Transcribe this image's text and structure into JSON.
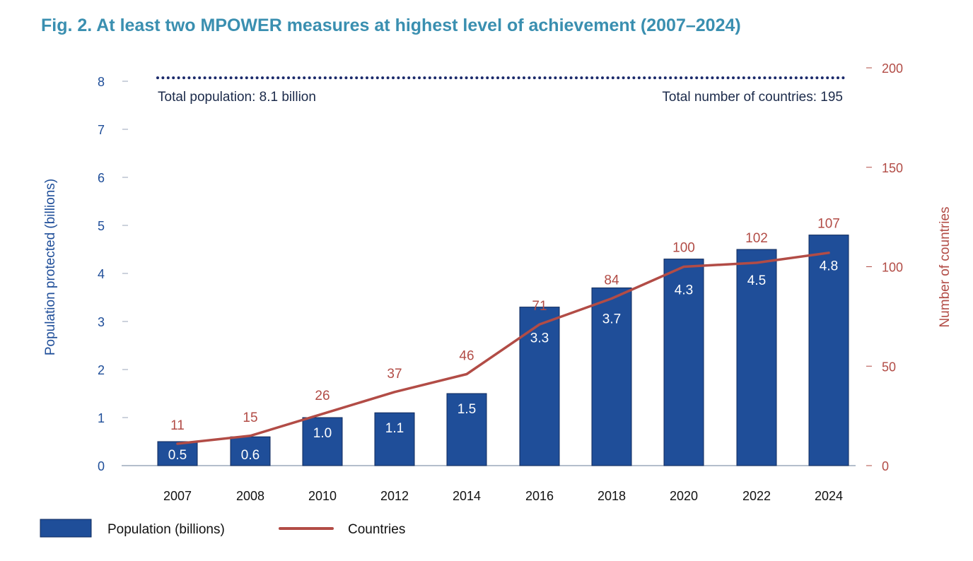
{
  "chart_data": {
    "type": "bar",
    "title": "Fig. 2. At least two MPOWER measures at highest level of achievement (2007–2024)",
    "categories": [
      "2007",
      "2008",
      "2010",
      "2012",
      "2014",
      "2016",
      "2018",
      "2020",
      "2022",
      "2024"
    ],
    "series": [
      {
        "name": "Population (billions)",
        "type": "bar",
        "axis": "left",
        "color": "#1f4e99",
        "values": [
          0.5,
          0.6,
          1.0,
          1.1,
          1.5,
          3.3,
          3.7,
          4.3,
          4.5,
          4.8
        ],
        "labels": [
          "0.5",
          "0.6",
          "1.0",
          "1.1",
          "1.5",
          "3.3",
          "3.7",
          "4.3",
          "4.5",
          "4.8"
        ]
      },
      {
        "name": "Countries",
        "type": "line",
        "axis": "right",
        "color": "#b24c46",
        "values": [
          11,
          15,
          26,
          37,
          46,
          71,
          84,
          100,
          102,
          107
        ],
        "labels": [
          "11",
          "15",
          "26",
          "37",
          "46",
          "71",
          "84",
          "100",
          "102",
          "107"
        ]
      }
    ],
    "ylabel_left": "Population protected (billions)",
    "ylabel_right": "Number of countries",
    "ylim_left": [
      0,
      8
    ],
    "yticks_left": [
      "0",
      "1",
      "2",
      "3",
      "4",
      "5",
      "6",
      "7",
      "8"
    ],
    "ylim_right": [
      0,
      200
    ],
    "yticks_right": [
      "0",
      "50",
      "100",
      "150",
      "200"
    ],
    "reference_line": {
      "style": "dotted",
      "left_value": 8,
      "right_value": 195
    },
    "annotations": {
      "total_population": "Total population: 8.1 billion",
      "total_countries": "Total number of countries: 195"
    },
    "grid": false,
    "legend_position": "bottom-left"
  }
}
